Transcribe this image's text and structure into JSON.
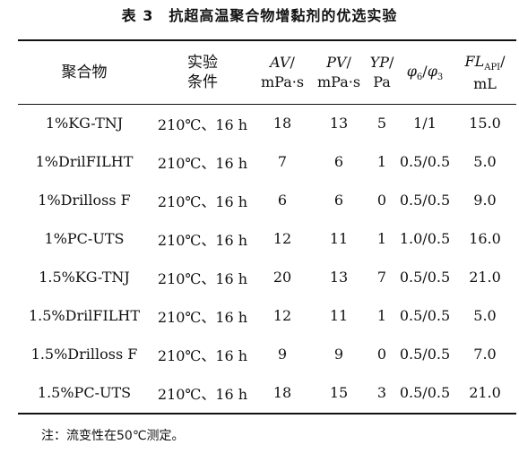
{
  "title": "表 3　抗超高温聚合物增黏剂的优选实验",
  "headers": {
    "polymer": "聚合物",
    "condition_line1": "实验",
    "condition_line2": "条件",
    "av_name": "AV",
    "av_slash": "/",
    "av_unit": "mPa·s",
    "pv_name": "PV",
    "pv_slash": "/",
    "pv_unit": "mPa·s",
    "yp_name": "YP",
    "yp_slash": "/",
    "yp_unit": "Pa",
    "phi_a": "φ",
    "phi_a_sub": "6",
    "phi_slash": "/",
    "phi_b": "φ",
    "phi_b_sub": "3",
    "fl_name": "FL",
    "fl_sub": "API",
    "fl_slash": "/",
    "fl_unit": "mL"
  },
  "rows": [
    {
      "polymer": "1%KG-TNJ",
      "condition": "210℃、16 h",
      "av": "18",
      "pv": "13",
      "yp": "5",
      "phi": "1/1",
      "fl": "15.0"
    },
    {
      "polymer": "1%DrilFILHT",
      "condition": "210℃、16 h",
      "av": "7",
      "pv": "6",
      "yp": "1",
      "phi": "0.5/0.5",
      "fl": "5.0"
    },
    {
      "polymer": "1%Drilloss F",
      "condition": "210℃、16 h",
      "av": "6",
      "pv": "6",
      "yp": "0",
      "phi": "0.5/0.5",
      "fl": "9.0"
    },
    {
      "polymer": "1%PC-UTS",
      "condition": "210℃、16 h",
      "av": "12",
      "pv": "11",
      "yp": "1",
      "phi": "1.0/0.5",
      "fl": "16.0"
    },
    {
      "polymer": "1.5%KG-TNJ",
      "condition": "210℃、16 h",
      "av": "20",
      "pv": "13",
      "yp": "7",
      "phi": "0.5/0.5",
      "fl": "21.0"
    },
    {
      "polymer": "1.5%DrilFILHT",
      "condition": "210℃、16 h",
      "av": "12",
      "pv": "11",
      "yp": "1",
      "phi": "0.5/0.5",
      "fl": "5.0"
    },
    {
      "polymer": "1.5%Drilloss F",
      "condition": "210℃、16 h",
      "av": "9",
      "pv": "9",
      "yp": "0",
      "phi": "0.5/0.5",
      "fl": "7.0"
    },
    {
      "polymer": "1.5%PC-UTS",
      "condition": "210℃、16 h",
      "av": "18",
      "pv": "15",
      "yp": "3",
      "phi": "0.5/0.5",
      "fl": "21.0"
    }
  ],
  "note": "注：流变性在50℃测定。"
}
